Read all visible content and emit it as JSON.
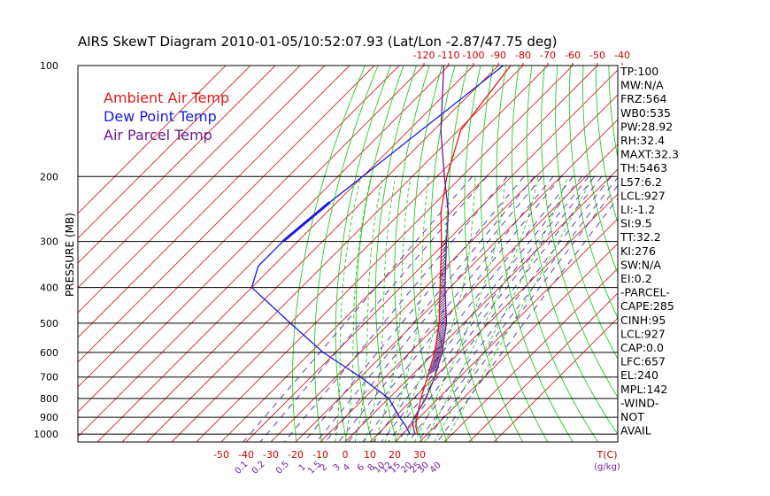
{
  "chart_data": {
    "type": "line",
    "title": "AIRS SkewT Diagram 2010-01-05/10:52:07.93 (Lat/Lon -2.87/47.75 deg)",
    "ylabel": "PRESSURE (MB)",
    "xlabel": "T(C)",
    "mixing_ratio_label": "(g/kg)",
    "pressure_ticks": [
      100,
      200,
      300,
      400,
      500,
      600,
      700,
      800,
      900,
      1000
    ],
    "top_temp_ticks": [
      -120,
      -110,
      -100,
      -90,
      -80,
      -70,
      -60,
      -50,
      -40
    ],
    "bottom_temp_ticks": [
      -50,
      -40,
      -30,
      -20,
      -10,
      0,
      10,
      20,
      30
    ],
    "mixing_ratio_ticks": [
      "0.1",
      "0.2",
      "0.5",
      "1",
      "1.5",
      "2",
      "3",
      "4",
      "6",
      "8",
      "10",
      "12",
      "15",
      "20",
      "25",
      "30",
      "40"
    ],
    "legend": [
      {
        "label": "Ambient Air Temp",
        "color": "#e01a1a"
      },
      {
        "label": "Dew Point Temp",
        "color": "#1a1ae0"
      },
      {
        "label": "Air Parcel Temp",
        "color": "#6a1b8a"
      }
    ],
    "series": [
      {
        "name": "Ambient Air Temp",
        "color": "#e01a1a",
        "points": [
          [
            100,
            -85
          ],
          [
            150,
            -79
          ],
          [
            200,
            -66
          ],
          [
            250,
            -54
          ],
          [
            300,
            -42
          ],
          [
            400,
            -24
          ],
          [
            500,
            -10
          ],
          [
            600,
            0
          ],
          [
            700,
            7
          ],
          [
            800,
            13
          ],
          [
            900,
            19
          ],
          [
            950,
            22
          ],
          [
            1000,
            26
          ]
        ]
      },
      {
        "name": "Dew Point Temp",
        "color": "#1a1ae0",
        "points": [
          [
            100,
            -88
          ],
          [
            150,
            -95
          ],
          [
            200,
            -100
          ],
          [
            250,
            -104
          ],
          [
            300,
            -106
          ],
          [
            350,
            -106
          ],
          [
            400,
            -100
          ],
          [
            500,
            -70
          ],
          [
            600,
            -45
          ],
          [
            700,
            -20
          ],
          [
            800,
            0
          ],
          [
            900,
            12
          ],
          [
            950,
            18
          ],
          [
            1000,
            23
          ]
        ]
      },
      {
        "name": "Air Parcel Temp",
        "color": "#6a1b8a",
        "points": [
          [
            100,
            -112
          ],
          [
            150,
            -87
          ],
          [
            200,
            -67
          ],
          [
            250,
            -51
          ],
          [
            300,
            -40
          ],
          [
            400,
            -22
          ],
          [
            500,
            -7
          ],
          [
            600,
            3
          ],
          [
            700,
            10
          ],
          [
            800,
            15
          ],
          [
            900,
            18
          ],
          [
            927,
            19
          ],
          [
            1000,
            25
          ]
        ]
      }
    ],
    "indices": [
      "TP:100",
      "MW:N/A",
      "FRZ:564",
      "WB0:535",
      "PW:28.92",
      "RH:32.4",
      "MAXT:32.3",
      "TH:5463",
      "L57:6.2",
      "LCL:927",
      "LI:-1.2",
      "SI:9.5",
      "TT:32.2",
      "KI:276",
      "SW:N/A",
      "EI:0.2",
      "-PARCEL-",
      "CAPE:285",
      "CINH:95",
      "LCL:927",
      "CAP:0.0",
      "LFC:657",
      "EL:240",
      "MPL:142",
      "-WIND-",
      "NOT",
      "AVAIL"
    ],
    "colors": {
      "isotherm": "#d42020",
      "dry_adiabat": "#22cc22",
      "moist_adiabat": "#22cc22",
      "mixing_ratio": "#5a2aa0",
      "isobar": "#000000"
    }
  }
}
